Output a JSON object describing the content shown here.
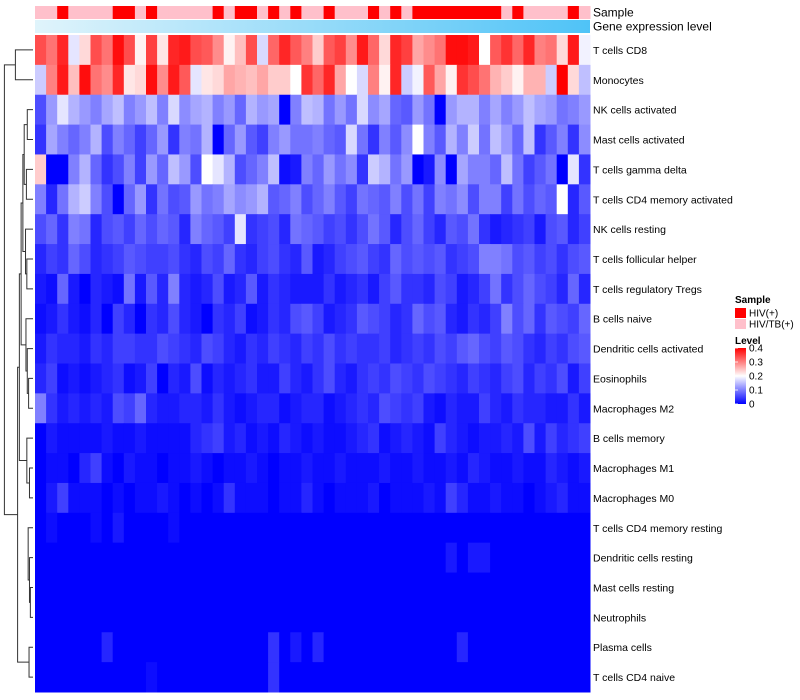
{
  "chart_data": {
    "type": "heatmap",
    "title": "",
    "rows": [
      "T cells CD8",
      "Monocytes",
      "NK cells activated",
      "Mast cells activated",
      "T cells gamma delta",
      "T cells CD4 memory activated",
      "NK cells resting",
      "T cells follicular helper",
      "T cells regulatory  Tregs",
      "B cells naive",
      "Dendritic cells activated",
      "Eosinophils",
      "Macrophages M2",
      "B cells memory",
      "Macrophages M1",
      "Macrophages M0",
      "T cells CD4 memory resting",
      "Dendritic cells resting",
      "Mast cells resting",
      "Neutrophils",
      "Plasma cells",
      "T cells CD4 naive"
    ],
    "n_samples": 50,
    "annotations": {
      "sample_label": "Sample",
      "gene_label": "Gene expression level",
      "sample_groups": [
        "HIV/TB(+)",
        "HIV/TB(+)",
        "HIV(+)",
        "HIV/TB(+)",
        "HIV/TB(+)",
        "HIV/TB(+)",
        "HIV/TB(+)",
        "HIV(+)",
        "HIV(+)",
        "HIV/TB(+)",
        "HIV(+)",
        "HIV/TB(+)",
        "HIV/TB(+)",
        "HIV/TB(+)",
        "HIV/TB(+)",
        "HIV/TB(+)",
        "HIV(+)",
        "HIV/TB(+)",
        "HIV(+)",
        "HIV(+)",
        "HIV/TB(+)",
        "HIV(+)",
        "HIV/TB(+)",
        "HIV(+)",
        "HIV/TB(+)",
        "HIV/TB(+)",
        "HIV(+)",
        "HIV/TB(+)",
        "HIV/TB(+)",
        "HIV/TB(+)",
        "HIV(+)",
        "HIV/TB(+)",
        "HIV(+)",
        "HIV/TB(+)",
        "HIV(+)",
        "HIV(+)",
        "HIV(+)",
        "HIV(+)",
        "HIV(+)",
        "HIV(+)",
        "HIV(+)",
        "HIV(+)",
        "HIV/TB(+)",
        "HIV(+)",
        "HIV/TB(+)",
        "HIV/TB(+)",
        "HIV/TB(+)",
        "HIV/TB(+)",
        "HIV(+)",
        "HIV/TB(+)"
      ]
    },
    "legend_sample": {
      "title": "Sample",
      "items": [
        {
          "label": "HIV(+)",
          "color": "#ff0000"
        },
        {
          "label": "HIV/TB(+)",
          "color": "#ffc0cb"
        }
      ]
    },
    "legend_level": {
      "title": "Level",
      "ticks": [
        0.4,
        0.3,
        0.2,
        0.1,
        0
      ],
      "range": [
        0,
        0.4
      ],
      "colors": [
        "#0000ff",
        "#ffffff",
        "#ff0000"
      ]
    },
    "gene_gradient": [
      "#e0f4fb",
      "#4fc3f7"
    ],
    "values": [
      [
        0.34,
        0.31,
        0.37,
        0.18,
        0.23,
        0.34,
        0.31,
        0.39,
        0.34,
        0.21,
        0.35,
        0.22,
        0.37,
        0.38,
        0.34,
        0.33,
        0.29,
        0.21,
        0.25,
        0.34,
        0.17,
        0.32,
        0.37,
        0.33,
        0.3,
        0.24,
        0.33,
        0.35,
        0.29,
        0.38,
        0.32,
        0.23,
        0.37,
        0.35,
        0.27,
        0.29,
        0.31,
        0.39,
        0.39,
        0.38,
        0.2,
        0.33,
        0.36,
        0.32,
        0.37,
        0.3,
        0.31,
        0.23,
        0.38,
        0.19
      ],
      [
        0.16,
        0.3,
        0.38,
        0.25,
        0.39,
        0.31,
        0.29,
        0.37,
        0.22,
        0.23,
        0.39,
        0.29,
        0.38,
        0.33,
        0.18,
        0.22,
        0.23,
        0.27,
        0.26,
        0.25,
        0.27,
        0.24,
        0.24,
        0.2,
        0.36,
        0.32,
        0.37,
        0.27,
        0.2,
        0.17,
        0.3,
        0.21,
        0.37,
        0.16,
        0.19,
        0.33,
        0.27,
        0.21,
        0.36,
        0.34,
        0.31,
        0.26,
        0.24,
        0.21,
        0.26,
        0.26,
        0.16,
        0.4,
        0.23,
        0.15
      ],
      [
        0.06,
        0.12,
        0.18,
        0.14,
        0.12,
        0.1,
        0.13,
        0.15,
        0.1,
        0.12,
        0.15,
        0.1,
        0.17,
        0.11,
        0.13,
        0.14,
        0.1,
        0.12,
        0.08,
        0.14,
        0.12,
        0.13,
        0.0,
        0.1,
        0.15,
        0.14,
        0.09,
        0.12,
        0.09,
        0.17,
        0.11,
        0.13,
        0.08,
        0.07,
        0.12,
        0.09,
        0.0,
        0.12,
        0.14,
        0.14,
        0.1,
        0.13,
        0.1,
        0.12,
        0.15,
        0.13,
        0.12,
        0.09,
        0.1,
        0.12
      ],
      [
        0.04,
        0.13,
        0.1,
        0.08,
        0.1,
        0.14,
        0.06,
        0.1,
        0.08,
        0.05,
        0.08,
        0.12,
        0.04,
        0.1,
        0.09,
        0.14,
        0.0,
        0.08,
        0.12,
        0.07,
        0.05,
        0.1,
        0.12,
        0.09,
        0.09,
        0.1,
        0.08,
        0.07,
        0.17,
        0.09,
        0.04,
        0.1,
        0.07,
        0.11,
        0.2,
        0.1,
        0.07,
        0.14,
        0.1,
        0.16,
        0.09,
        0.15,
        0.12,
        0.08,
        0.15,
        0.04,
        0.07,
        0.1,
        0.04,
        0.11
      ],
      [
        0.24,
        0.0,
        0.0,
        0.1,
        0.14,
        0.08,
        0.04,
        0.06,
        0.1,
        0.05,
        0.12,
        0.08,
        0.15,
        0.12,
        0.06,
        0.2,
        0.18,
        0.14,
        0.06,
        0.08,
        0.1,
        0.15,
        0.01,
        0.02,
        0.1,
        0.08,
        0.12,
        0.09,
        0.11,
        0.04,
        0.16,
        0.14,
        0.09,
        0.12,
        0.0,
        0.02,
        0.11,
        0.0,
        0.13,
        0.1,
        0.1,
        0.08,
        0.15,
        0.09,
        0.05,
        0.07,
        0.09,
        0.0,
        0.18,
        0.04
      ],
      [
        0.1,
        0.03,
        0.09,
        0.14,
        0.16,
        0.1,
        0.06,
        0.0,
        0.08,
        0.12,
        0.04,
        0.09,
        0.06,
        0.07,
        0.12,
        0.09,
        0.1,
        0.13,
        0.11,
        0.12,
        0.14,
        0.07,
        0.08,
        0.1,
        0.06,
        0.08,
        0.1,
        0.07,
        0.05,
        0.09,
        0.08,
        0.07,
        0.1,
        0.06,
        0.09,
        0.05,
        0.1,
        0.09,
        0.11,
        0.06,
        0.1,
        0.1,
        0.05,
        0.09,
        0.06,
        0.08,
        0.07,
        0.2,
        0.03,
        0.07
      ],
      [
        0.06,
        0.08,
        0.04,
        0.1,
        0.09,
        0.03,
        0.06,
        0.07,
        0.05,
        0.08,
        0.06,
        0.08,
        0.07,
        0.03,
        0.1,
        0.08,
        0.07,
        0.05,
        0.18,
        0.04,
        0.05,
        0.06,
        0.03,
        0.09,
        0.08,
        0.07,
        0.05,
        0.06,
        0.04,
        0.06,
        0.09,
        0.07,
        0.03,
        0.06,
        0.08,
        0.05,
        0.03,
        0.07,
        0.06,
        0.09,
        0.04,
        0.02,
        0.03,
        0.04,
        0.05,
        0.02,
        0.06,
        0.07,
        0.03,
        0.05
      ],
      [
        0.03,
        0.05,
        0.04,
        0.08,
        0.06,
        0.03,
        0.04,
        0.05,
        0.07,
        0.06,
        0.05,
        0.05,
        0.06,
        0.04,
        0.03,
        0.06,
        0.05,
        0.08,
        0.04,
        0.03,
        0.05,
        0.06,
        0.04,
        0.03,
        0.07,
        0.02,
        0.03,
        0.05,
        0.06,
        0.07,
        0.05,
        0.04,
        0.08,
        0.06,
        0.07,
        0.06,
        0.07,
        0.04,
        0.05,
        0.06,
        0.1,
        0.1,
        0.09,
        0.06,
        0.07,
        0.05,
        0.06,
        0.04,
        0.06,
        0.07
      ],
      [
        0.02,
        0.01,
        0.08,
        0.02,
        0.0,
        0.03,
        0.02,
        0.01,
        0.09,
        0.02,
        0.07,
        0.03,
        0.1,
        0.03,
        0.02,
        0.03,
        0.06,
        0.02,
        0.03,
        0.07,
        0.02,
        0.04,
        0.03,
        0.02,
        0.02,
        0.02,
        0.04,
        0.02,
        0.03,
        0.04,
        0.02,
        0.05,
        0.07,
        0.04,
        0.04,
        0.03,
        0.06,
        0.05,
        0.02,
        0.03,
        0.05,
        0.09,
        0.04,
        0.06,
        0.08,
        0.06,
        0.05,
        0.03,
        0.08,
        0.03
      ],
      [
        0.01,
        0.02,
        0.04,
        0.02,
        0.01,
        0.03,
        0.0,
        0.05,
        0.03,
        0.0,
        0.04,
        0.03,
        0.06,
        0.03,
        0.02,
        0.0,
        0.04,
        0.03,
        0.05,
        0.01,
        0.02,
        0.04,
        0.03,
        0.06,
        0.07,
        0.05,
        0.02,
        0.03,
        0.04,
        0.07,
        0.06,
        0.05,
        0.03,
        0.04,
        0.08,
        0.06,
        0.07,
        0.03,
        0.02,
        0.04,
        0.03,
        0.05,
        0.1,
        0.06,
        0.08,
        0.04,
        0.07,
        0.06,
        0.05,
        0.08
      ],
      [
        0.02,
        0.04,
        0.03,
        0.03,
        0.02,
        0.04,
        0.03,
        0.05,
        0.05,
        0.04,
        0.04,
        0.06,
        0.05,
        0.04,
        0.03,
        0.06,
        0.05,
        0.03,
        0.02,
        0.04,
        0.03,
        0.05,
        0.04,
        0.03,
        0.05,
        0.04,
        0.06,
        0.04,
        0.05,
        0.04,
        0.04,
        0.05,
        0.03,
        0.04,
        0.05,
        0.04,
        0.06,
        0.05,
        0.07,
        0.08,
        0.06,
        0.05,
        0.07,
        0.06,
        0.04,
        0.03,
        0.05,
        0.04,
        0.06,
        0.07
      ],
      [
        0.03,
        0.05,
        0.01,
        0.02,
        0.01,
        0.02,
        0.03,
        0.04,
        0.01,
        0.02,
        0.05,
        0.0,
        0.03,
        0.02,
        0.06,
        0.01,
        0.03,
        0.02,
        0.03,
        0.04,
        0.02,
        0.02,
        0.05,
        0.03,
        0.02,
        0.04,
        0.06,
        0.03,
        0.02,
        0.04,
        0.05,
        0.04,
        0.06,
        0.05,
        0.04,
        0.06,
        0.05,
        0.04,
        0.03,
        0.05,
        0.04,
        0.03,
        0.05,
        0.06,
        0.03,
        0.05,
        0.04,
        0.06,
        0.02,
        0.05
      ],
      [
        0.1,
        0.04,
        0.02,
        0.03,
        0.02,
        0.03,
        0.02,
        0.06,
        0.05,
        0.08,
        0.03,
        0.02,
        0.02,
        0.03,
        0.03,
        0.02,
        0.04,
        0.02,
        0.01,
        0.02,
        0.03,
        0.03,
        0.01,
        0.02,
        0.03,
        0.03,
        0.01,
        0.02,
        0.03,
        0.04,
        0.03,
        0.06,
        0.05,
        0.04,
        0.05,
        0.02,
        0.01,
        0.03,
        0.02,
        0.02,
        0.05,
        0.03,
        0.02,
        0.04,
        0.03,
        0.03,
        0.02,
        0.02,
        0.04,
        0.02
      ],
      [
        0.0,
        0.02,
        0.01,
        0.01,
        0.01,
        0.01,
        0.02,
        0.01,
        0.01,
        0.02,
        0.01,
        0.01,
        0.01,
        0.01,
        0.03,
        0.04,
        0.05,
        0.02,
        0.03,
        0.01,
        0.02,
        0.01,
        0.03,
        0.02,
        0.01,
        0.02,
        0.01,
        0.01,
        0.02,
        0.03,
        0.04,
        0.01,
        0.02,
        0.03,
        0.02,
        0.01,
        0.05,
        0.03,
        0.02,
        0.01,
        0.02,
        0.02,
        0.03,
        0.02,
        0.06,
        0.02,
        0.05,
        0.03,
        0.04,
        0.05
      ],
      [
        0.0,
        0.01,
        0.01,
        0.0,
        0.03,
        0.05,
        0.01,
        0.0,
        0.02,
        0.01,
        0.01,
        0.0,
        0.01,
        0.01,
        0.02,
        0.01,
        0.0,
        0.01,
        0.01,
        0.02,
        0.01,
        0.0,
        0.01,
        0.01,
        0.02,
        0.01,
        0.01,
        0.02,
        0.01,
        0.01,
        0.01,
        0.02,
        0.01,
        0.01,
        0.02,
        0.01,
        0.01,
        0.02,
        0.01,
        0.03,
        0.02,
        0.01,
        0.01,
        0.02,
        0.01,
        0.01,
        0.03,
        0.02,
        0.01,
        0.02
      ],
      [
        0.0,
        0.02,
        0.05,
        0.01,
        0.01,
        0.01,
        0.0,
        0.01,
        0.0,
        0.01,
        0.01,
        0.02,
        0.01,
        0.0,
        0.01,
        0.0,
        0.01,
        0.04,
        0.01,
        0.01,
        0.01,
        0.0,
        0.01,
        0.01,
        0.03,
        0.01,
        0.0,
        0.01,
        0.01,
        0.01,
        0.02,
        0.0,
        0.01,
        0.01,
        0.01,
        0.02,
        0.01,
        0.05,
        0.03,
        0.01,
        0.01,
        0.02,
        0.01,
        0.01,
        0.0,
        0.01,
        0.02,
        0.03,
        0.01,
        0.01
      ],
      [
        0.0,
        0.01,
        0.0,
        0.0,
        0.0,
        0.01,
        0.0,
        0.02,
        0.0,
        0.0,
        0.0,
        0.0,
        0.01,
        0.0,
        0.0,
        0.0,
        0.0,
        0.0,
        0.0,
        0.0,
        0.0,
        0.0,
        0.0,
        0.0,
        0.0,
        0.0,
        0.0,
        0.0,
        0.0,
        0.0,
        0.0,
        0.0,
        0.0,
        0.0,
        0.0,
        0.0,
        0.0,
        0.0,
        0.0,
        0.0,
        0.0,
        0.0,
        0.0,
        0.0,
        0.0,
        0.0,
        0.0,
        0.0,
        0.0,
        0.0
      ],
      [
        0.0,
        0.0,
        0.0,
        0.0,
        0.0,
        0.0,
        0.0,
        0.0,
        0.0,
        0.0,
        0.0,
        0.0,
        0.0,
        0.0,
        0.0,
        0.0,
        0.0,
        0.0,
        0.0,
        0.0,
        0.0,
        0.0,
        0.0,
        0.0,
        0.0,
        0.0,
        0.0,
        0.0,
        0.0,
        0.0,
        0.0,
        0.0,
        0.0,
        0.0,
        0.0,
        0.0,
        0.0,
        0.02,
        0.0,
        0.02,
        0.02,
        0.0,
        0.0,
        0.0,
        0.0,
        0.0,
        0.0,
        0.0,
        0.0,
        0.0
      ],
      [
        0.0,
        0.0,
        0.0,
        0.0,
        0.0,
        0.0,
        0.0,
        0.0,
        0.0,
        0.0,
        0.0,
        0.0,
        0.0,
        0.0,
        0.0,
        0.0,
        0.0,
        0.0,
        0.0,
        0.0,
        0.0,
        0.0,
        0.0,
        0.0,
        0.0,
        0.0,
        0.0,
        0.0,
        0.0,
        0.0,
        0.0,
        0.0,
        0.0,
        0.0,
        0.0,
        0.0,
        0.0,
        0.0,
        0.0,
        0.0,
        0.0,
        0.0,
        0.0,
        0.0,
        0.0,
        0.0,
        0.0,
        0.0,
        0.0,
        0.0
      ],
      [
        0.0,
        0.0,
        0.0,
        0.0,
        0.0,
        0.0,
        0.0,
        0.0,
        0.0,
        0.0,
        0.0,
        0.0,
        0.0,
        0.0,
        0.0,
        0.0,
        0.0,
        0.0,
        0.0,
        0.0,
        0.0,
        0.0,
        0.0,
        0.0,
        0.0,
        0.0,
        0.0,
        0.0,
        0.0,
        0.0,
        0.0,
        0.0,
        0.0,
        0.0,
        0.0,
        0.0,
        0.0,
        0.0,
        0.0,
        0.0,
        0.0,
        0.0,
        0.0,
        0.0,
        0.0,
        0.0,
        0.0,
        0.0,
        0.0,
        0.0
      ],
      [
        0.0,
        0.0,
        0.0,
        0.0,
        0.0,
        0.0,
        0.03,
        0.0,
        0.0,
        0.0,
        0.0,
        0.0,
        0.0,
        0.0,
        0.0,
        0.0,
        0.0,
        0.0,
        0.0,
        0.0,
        0.0,
        0.04,
        0.0,
        0.02,
        0.0,
        0.03,
        0.0,
        0.0,
        0.0,
        0.0,
        0.0,
        0.0,
        0.0,
        0.0,
        0.0,
        0.0,
        0.0,
        0.0,
        0.03,
        0.0,
        0.0,
        0.0,
        0.0,
        0.0,
        0.0,
        0.0,
        0.0,
        0.0,
        0.0,
        0.0
      ],
      [
        0.0,
        0.0,
        0.0,
        0.0,
        0.0,
        0.0,
        0.0,
        0.0,
        0.0,
        0.0,
        0.01,
        0.0,
        0.0,
        0.0,
        0.0,
        0.0,
        0.0,
        0.0,
        0.0,
        0.0,
        0.0,
        0.04,
        0.0,
        0.0,
        0.0,
        0.0,
        0.0,
        0.0,
        0.0,
        0.0,
        0.0,
        0.0,
        0.0,
        0.0,
        0.0,
        0.0,
        0.0,
        0.0,
        0.0,
        0.0,
        0.0,
        0.0,
        0.0,
        0.0,
        0.0,
        0.0,
        0.0,
        0.0,
        0.0,
        0.0
      ]
    ]
  }
}
